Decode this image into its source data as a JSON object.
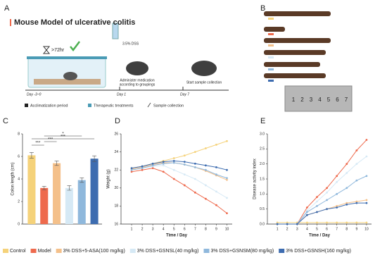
{
  "panel_a": {
    "letter": "A",
    "title": "Mouse Model of ulcerative colitis",
    "wait": ">72hr",
    "dss": "3.5% DSS",
    "step2": [
      "Administer medication",
      "according to groupings"
    ],
    "step3": "Start sample collection",
    "days": [
      "Day -3~0",
      "Day 1",
      "Day 7"
    ],
    "legend": [
      "Acclimatization period",
      "Therapeutic treatments",
      "Sample collection"
    ]
  },
  "panel_b": {
    "letter": "B",
    "ruler": [
      1,
      2,
      3,
      4,
      5,
      6,
      7
    ]
  },
  "chart_data": [
    {
      "type": "bar",
      "panel": "C",
      "y_label": "Colon length (cm)",
      "ylim": [
        0,
        8
      ],
      "yticks": [
        0,
        2,
        4,
        6,
        8
      ],
      "series": [
        {
          "name": "Control",
          "color": "#f5d27a",
          "values": [
            6.1
          ],
          "errors": [
            0.25
          ]
        },
        {
          "name": "Model",
          "color": "#ee6a4d",
          "values": [
            3.2
          ],
          "errors": [
            0.15
          ]
        },
        {
          "name": "3% DSS+5-ASA(100 mg/kg)",
          "color": "#f4c08a",
          "values": [
            5.4
          ],
          "errors": [
            0.2
          ]
        },
        {
          "name": "3% DSS+GSNSL(40 mg/kg)",
          "color": "#d6e9f5",
          "values": [
            3.2
          ],
          "errors": [
            0.2
          ]
        },
        {
          "name": "3% DSS+GSNSM(80 mg/kg)",
          "color": "#8fb8dc",
          "values": [
            3.9
          ],
          "errors": [
            0.2
          ]
        },
        {
          "name": "3% DSS+GSNSH(160 mg/kg)",
          "color": "#3d6cb0",
          "values": [
            5.8
          ],
          "errors": [
            0.25
          ]
        }
      ],
      "annotations": [
        "***",
        "***",
        "***",
        "*"
      ]
    },
    {
      "type": "line",
      "panel": "D",
      "x_label": "Time / Day",
      "y_label": "Weight (g)",
      "x": [
        1,
        2,
        3,
        4,
        5,
        6,
        7,
        8,
        9,
        10
      ],
      "xlim": [
        0,
        10.5
      ],
      "xticks": [
        1,
        2,
        3,
        4,
        5,
        6,
        7,
        8,
        9,
        10
      ],
      "ylim": [
        16,
        26
      ],
      "yticks": [
        16,
        18,
        20,
        22,
        24,
        26
      ],
      "series": [
        {
          "color": "#f5d27a",
          "values": [
            22.2,
            22.4,
            22.7,
            23.0,
            23.3,
            23.6,
            24.0,
            24.4,
            24.8,
            25.2
          ]
        },
        {
          "color": "#ee6a4d",
          "values": [
            21.8,
            22.0,
            22.2,
            21.8,
            21.0,
            20.3,
            19.5,
            18.8,
            18.1,
            17.2
          ]
        },
        {
          "color": "#f4c08a",
          "values": [
            22.1,
            22.3,
            22.6,
            22.8,
            22.8,
            22.6,
            22.3,
            21.9,
            21.4,
            20.9
          ]
        },
        {
          "color": "#d6e9f5",
          "values": [
            22.0,
            22.2,
            22.4,
            22.5,
            22.0,
            21.5,
            21.0,
            20.3,
            19.6,
            18.9
          ]
        },
        {
          "color": "#8fb8dc",
          "values": [
            22.0,
            22.2,
            22.5,
            22.7,
            22.8,
            22.6,
            22.3,
            22.0,
            21.5,
            21.1
          ]
        },
        {
          "color": "#3d6cb0",
          "values": [
            22.2,
            22.4,
            22.7,
            22.9,
            23.0,
            22.9,
            22.7,
            22.5,
            22.3,
            22.0
          ]
        }
      ]
    },
    {
      "type": "line",
      "panel": "E",
      "x_label": "Time / Day",
      "y_label": "Disease activity index",
      "x": [
        1,
        2,
        3,
        4,
        5,
        6,
        7,
        8,
        9,
        10
      ],
      "xlim": [
        0,
        10.5
      ],
      "xticks": [
        1,
        2,
        3,
        4,
        5,
        6,
        7,
        8,
        9,
        10
      ],
      "ylim": [
        0,
        3
      ],
      "yticks": [
        {
          "value": 0,
          "label": "0.0"
        },
        {
          "value": 0.5,
          "label": "0.5"
        },
        {
          "value": 1,
          "label": "1.0"
        },
        {
          "value": 1.5,
          "label": "1.5"
        },
        {
          "value": 2,
          "label": "2.0"
        },
        {
          "value": 2.5,
          "label": "2.5"
        },
        {
          "value": 3,
          "label": "3.0"
        }
      ],
      "series": [
        {
          "color": "#f5d27a",
          "values": [
            0.05,
            0.05,
            0.05,
            0.05,
            0.05,
            0.05,
            0.05,
            0.05,
            0.05,
            0.05
          ]
        },
        {
          "color": "#ee6a4d",
          "values": [
            0,
            0,
            0,
            0.55,
            0.9,
            1.2,
            1.6,
            2.0,
            2.45,
            2.8
          ]
        },
        {
          "color": "#f4c08a",
          "values": [
            0,
            0,
            0,
            0.3,
            0.4,
            0.5,
            0.6,
            0.7,
            0.75,
            0.8
          ]
        },
        {
          "color": "#d6e9f5",
          "values": [
            0,
            0,
            0,
            0.45,
            0.75,
            1.05,
            1.4,
            1.7,
            2.0,
            2.25
          ]
        },
        {
          "color": "#8fb8dc",
          "values": [
            0,
            0,
            0,
            0.4,
            0.6,
            0.8,
            1.0,
            1.2,
            1.45,
            1.6
          ]
        },
        {
          "color": "#3d6cb0",
          "values": [
            0,
            0,
            0,
            0.3,
            0.4,
            0.5,
            0.55,
            0.65,
            0.7,
            0.7
          ]
        }
      ]
    }
  ]
}
